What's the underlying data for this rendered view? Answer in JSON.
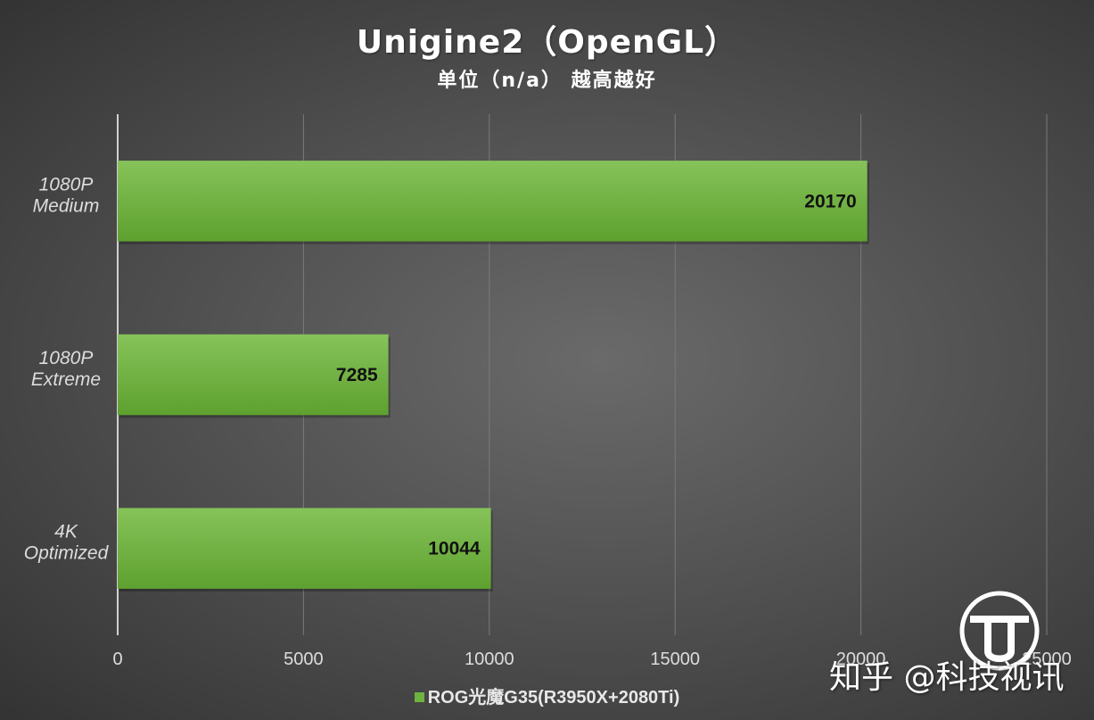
{
  "title": "Unigine2（OpenGL）",
  "subtitle": "单位（n/a） 越高越好",
  "watermark": "知乎 @科技视讯",
  "colors": {
    "bar": "#6db33f",
    "bar_light": "#86c35a",
    "bar_dark": "#5ea12f",
    "grid": "#7a7a7a",
    "axis": "#d0d0d0",
    "text": "#ffffff",
    "tick": "#dddddd"
  },
  "chart_data": {
    "type": "bar",
    "orientation": "horizontal",
    "categories": [
      "1080P\nMedium",
      "1080P\nExtreme",
      "4K\nOptimized"
    ],
    "series": [
      {
        "name": "ROG光魔G35(R3950X+2080Ti)",
        "values": [
          20170,
          7285,
          10044
        ]
      }
    ],
    "xlim": [
      0,
      25000
    ],
    "xticks": [
      0,
      5000,
      10000,
      15000,
      20000,
      25000
    ],
    "xtick_labels": [
      "0",
      "5000",
      "10000",
      "15000",
      "20000",
      "25000"
    ],
    "data_labels": [
      "20170",
      "7285",
      "10044"
    ],
    "grid": true,
    "legend_position": "bottom"
  }
}
